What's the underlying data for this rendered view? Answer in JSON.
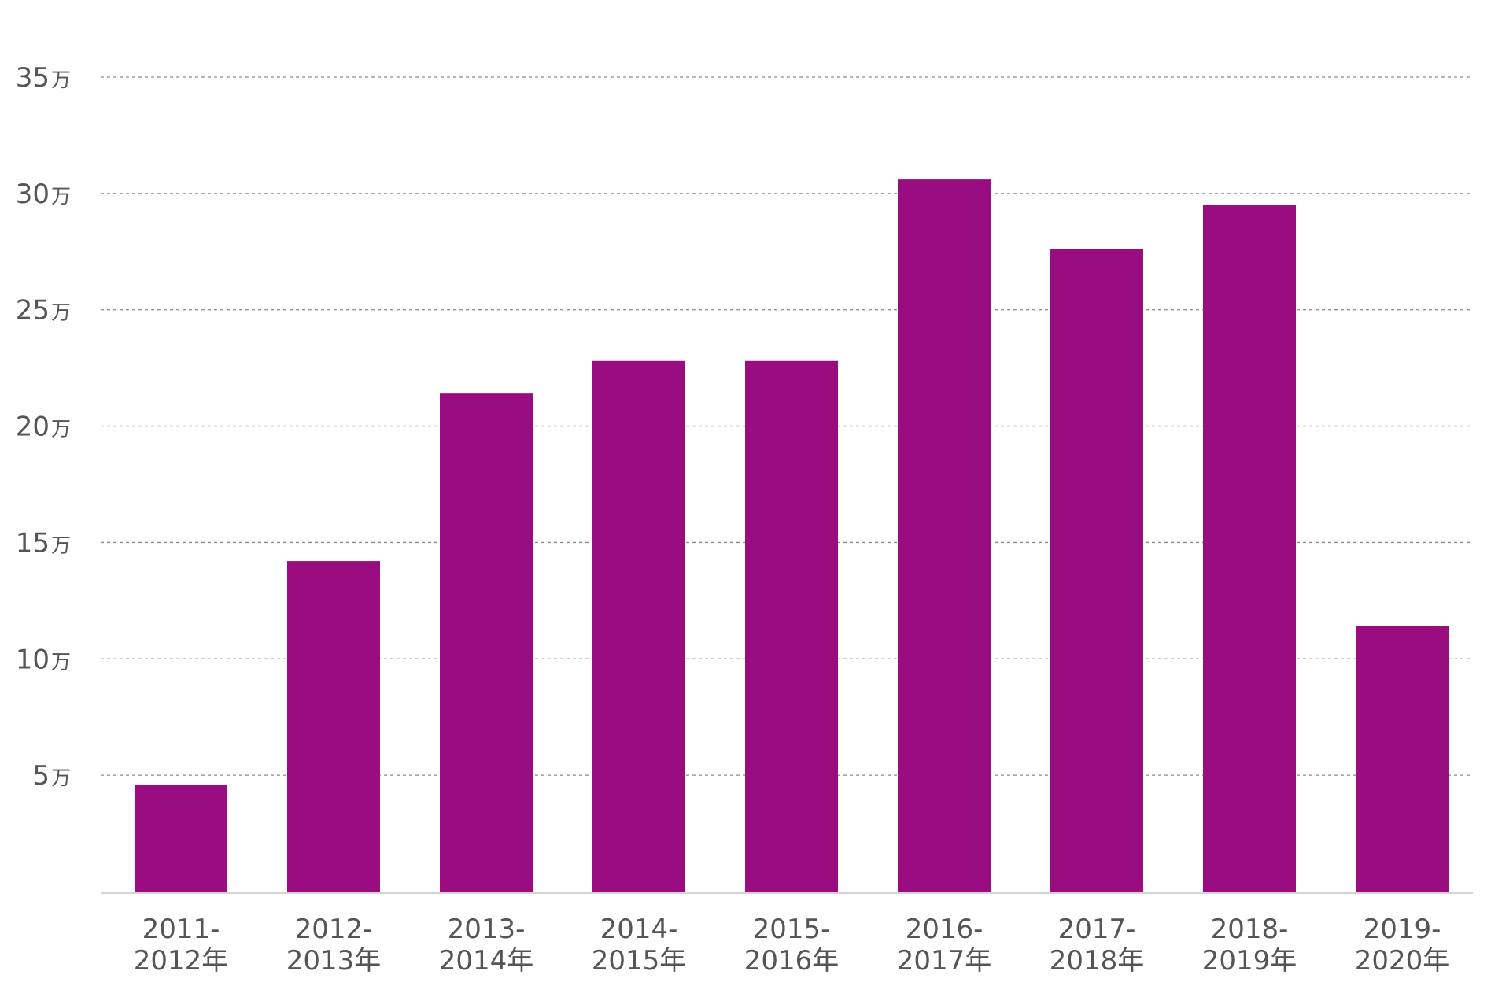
{
  "chart_data": {
    "type": "bar",
    "title": "",
    "xlabel": "",
    "ylabel": "",
    "categories": [
      [
        "2011-",
        "2012年"
      ],
      [
        "2012-",
        "2013年"
      ],
      [
        "2013-",
        "2014年"
      ],
      [
        "2014-",
        "2015年"
      ],
      [
        "2015-",
        "2016年"
      ],
      [
        "2016-",
        "2017年"
      ],
      [
        "2017-",
        "2018年"
      ],
      [
        "2018-",
        "2019年"
      ],
      [
        "2019-",
        "2020年"
      ]
    ],
    "values": [
      46000,
      142000,
      214000,
      228000,
      228000,
      306000,
      276000,
      295000,
      114000
    ],
    "ylim": [
      0,
      350000
    ],
    "y_ticks": [
      {
        "value": 50000,
        "num": "5",
        "unit": "万"
      },
      {
        "value": 100000,
        "num": "10",
        "unit": "万"
      },
      {
        "value": 150000,
        "num": "15",
        "unit": "万"
      },
      {
        "value": 200000,
        "num": "20",
        "unit": "万"
      },
      {
        "value": 250000,
        "num": "25",
        "unit": "万"
      },
      {
        "value": 300000,
        "num": "30",
        "unit": "万"
      },
      {
        "value": 350000,
        "num": "35",
        "unit": "万"
      }
    ],
    "grid": true,
    "legend": "none",
    "bar_color": "#990d80"
  }
}
